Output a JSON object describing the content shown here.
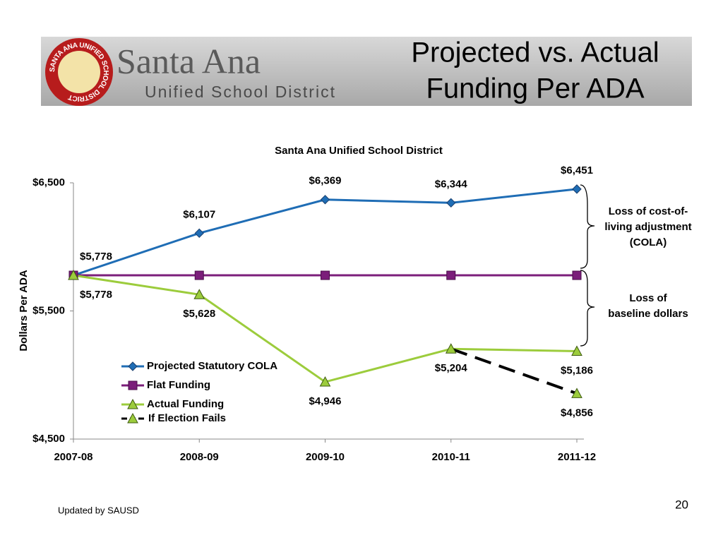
{
  "header": {
    "logo_ring": "SANTA ANA UNIFIED SCHOOL DISTRICT",
    "logo_name": "Santa Ana",
    "logo_sub": "Unified School District",
    "title_lines": [
      "Projected vs. Actual",
      "Funding Per ADA"
    ]
  },
  "chart_data": {
    "type": "line",
    "title": "Santa Ana Unified School District",
    "y_label": "Dollars Per ADA",
    "categories": [
      "2007-08",
      "2008-09",
      "2009-10",
      "2010-11",
      "2011-12"
    ],
    "series": [
      {
        "name": "Projected Statutory COLA",
        "color": "#1f6db5",
        "marker": "diamond",
        "values": [
          5778,
          6107,
          6369,
          6344,
          6451
        ],
        "value_labels": [
          "$5,778",
          "$6,107",
          "$6,369",
          "$6,344",
          "$6,451"
        ]
      },
      {
        "name": "Flat Funding",
        "color": "#7b1e7a",
        "marker": "square",
        "values": [
          5778,
          5778,
          5778,
          5778,
          5778
        ]
      },
      {
        "name": "Actual Funding",
        "color": "#9ccc3c",
        "marker": "triangle",
        "values": [
          5778,
          5628,
          4946,
          5204,
          5186
        ],
        "value_labels": [
          "$5,778",
          "$5,628",
          "$4,946",
          "$5,204",
          "$5,186"
        ]
      },
      {
        "name": "If Election Fails",
        "color": "#000000",
        "marker": "triangle",
        "dashed": true,
        "values": [
          null,
          null,
          null,
          5204,
          4856
        ],
        "value_labels": [
          null,
          null,
          null,
          null,
          "$4,856"
        ]
      }
    ],
    "ylim": [
      4500,
      6500
    ],
    "yticks": [
      {
        "value": 4500,
        "label": "$4,500"
      },
      {
        "value": 5500,
        "label": "$5,500"
      },
      {
        "value": 6500,
        "label": "$6,500"
      }
    ],
    "annotations": [
      [
        "Loss of cost-of-",
        "living adjustment",
        "(COLA)"
      ],
      [
        "Loss of",
        "baseline dollars"
      ]
    ]
  },
  "footer": "Updated by SAUSD",
  "page_number": "20"
}
